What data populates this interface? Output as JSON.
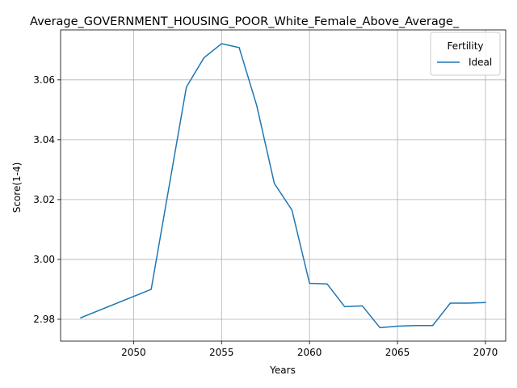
{
  "chart_data": {
    "type": "line",
    "title": "Average_GOVERNMENT_HOUSING_POOR_White_Female_Above_Average_",
    "xlabel": "Years",
    "ylabel": "Score(1-4)",
    "xlim": [
      2045.85,
      2071.15
    ],
    "ylim": [
      2.9727,
      3.0767
    ],
    "xticks": [
      2050,
      2055,
      2060,
      2065,
      2070
    ],
    "xtick_labels": [
      "2050",
      "2055",
      "2060",
      "2065",
      "2070"
    ],
    "yticks": [
      2.98,
      3.0,
      3.02,
      3.04,
      3.06
    ],
    "ytick_labels": [
      "2.98",
      "3.00",
      "3.02",
      "3.04",
      "3.06"
    ],
    "grid": true,
    "legend": {
      "title": "Fertility",
      "placement": "top-right"
    },
    "series": [
      {
        "name": "Ideal",
        "color": "#1f77b4",
        "x": [
          2047,
          2051,
          2053,
          2054,
          2055,
          2056,
          2057,
          2058,
          2059,
          2060,
          2061,
          2062,
          2063,
          2064,
          2065,
          2066,
          2067,
          2068,
          2069,
          2070
        ],
        "y": [
          2.9805,
          2.99,
          3.0576,
          3.0674,
          3.0721,
          3.0708,
          3.0514,
          3.0254,
          3.0165,
          2.992,
          2.9918,
          2.9842,
          2.9845,
          2.9772,
          2.9777,
          2.9779,
          2.9779,
          2.9854,
          2.9854,
          2.9856
        ]
      }
    ]
  }
}
